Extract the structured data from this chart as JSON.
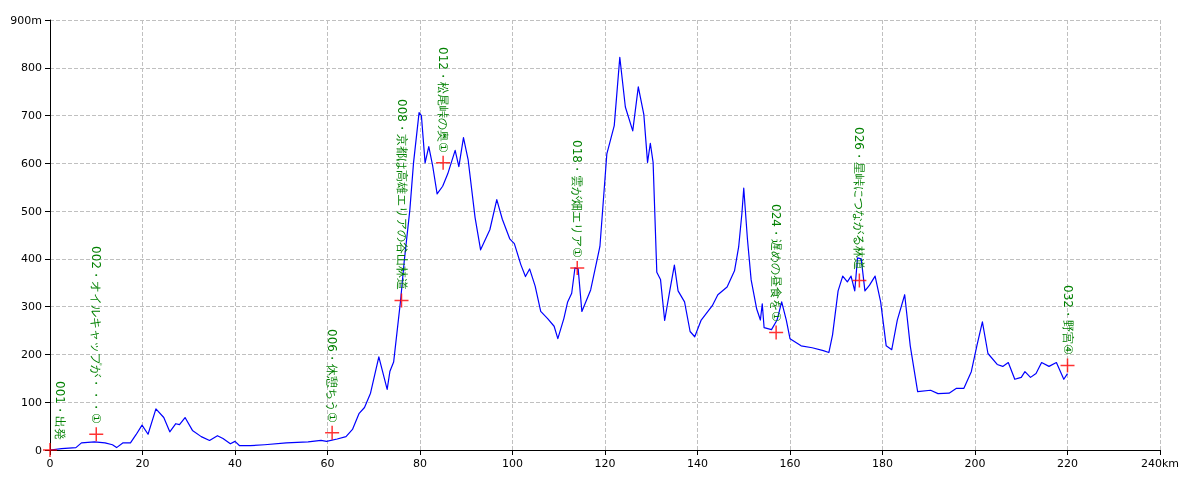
{
  "chart_data": {
    "type": "line",
    "xlim": [
      0,
      240
    ],
    "ylim": [
      0,
      900
    ],
    "xticks": [
      0,
      20,
      40,
      60,
      80,
      100,
      120,
      140,
      160,
      180,
      200,
      220,
      {
        "value": 240,
        "label": "240km"
      }
    ],
    "yticks": [
      0,
      100,
      200,
      300,
      400,
      500,
      600,
      700,
      800,
      {
        "value": 900,
        "label": "900m"
      }
    ],
    "grid": true,
    "series": [
      {
        "type": "line",
        "color": "#0000ff",
        "marker": "none",
        "line_style": "solid",
        "x": [
          0,
          2.5,
          5.6,
          6.8,
          9.6,
          11.9,
          13.5,
          14.4,
          15.8,
          17.4,
          18.6,
          19.9,
          21.2,
          22.9,
          24.6,
          25.9,
          27.2,
          28,
          29.2,
          30.8,
          32.7,
          34.5,
          36.2,
          37.4,
          39,
          40,
          41,
          43.3,
          46.4,
          51.1,
          55.8,
          58.6,
          59.8,
          62.1,
          64,
          65.4,
          66.8,
          68,
          69.3,
          71.1,
          72.9,
          73.5,
          74.3,
          75,
          75.8,
          76.6,
          77.8,
          78.6,
          79.8,
          80.3,
          81.1,
          81.9,
          82.7,
          83.7,
          84.9,
          86,
          87.6,
          88.4,
          89.4,
          90.4,
          91.9,
          93.1,
          95.1,
          96.6,
          97.8,
          99.4,
          100.4,
          101.8,
          102.8,
          103.7,
          104.9,
          106.1,
          107.6,
          109,
          109.8,
          111.1,
          111.9,
          112.8,
          113.5,
          114.2,
          115,
          116.9,
          118.9,
          120.4,
          122,
          123.2,
          124.4,
          126,
          127.2,
          128.4,
          129.2,
          129.8,
          130.4,
          131.2,
          132,
          132.9,
          134,
          135,
          135.8,
          137.2,
          138.4,
          139.4,
          140.8,
          143.2,
          144.4,
          146.4,
          148,
          148.9,
          149.6,
          150,
          150.8,
          151.6,
          152.8,
          153.6,
          154,
          154.4,
          156,
          157.2,
          158.2,
          159.2,
          160,
          162.4,
          164.8,
          167.2,
          168.4,
          169.2,
          170.4,
          171.4,
          172.4,
          173.2,
          174,
          174.6,
          175.4,
          176.2,
          177.2,
          178.4,
          179.6,
          180.8,
          182,
          183.2,
          184.8,
          186,
          187.6,
          190.4,
          192,
          194.4,
          196,
          197.6,
          199.2,
          200.4,
          201.6,
          202.8,
          204.8,
          206,
          207.2,
          208.6,
          210,
          210.8,
          212,
          213.2,
          214.4,
          216,
          217.6,
          219.2,
          220
        ],
        "values": [
          0,
          3,
          5,
          15,
          17,
          15,
          11,
          5,
          15,
          15,
          32,
          52,
          33,
          86,
          68,
          38,
          55,
          53,
          68,
          41,
          28,
          20,
          30,
          24,
          13,
          18,
          9,
          9,
          11,
          15,
          17,
          20,
          18,
          23,
          28,
          43,
          76,
          89,
          119,
          195,
          127,
          165,
          184,
          244,
          313,
          396,
          502,
          601,
          706,
          700,
          601,
          635,
          597,
          536,
          552,
          578,
          627,
          593,
          654,
          608,
          487,
          419,
          461,
          524,
          483,
          442,
          432,
          388,
          363,
          379,
          343,
          290,
          275,
          259,
          233,
          275,
          309,
          328,
          381,
          379,
          290,
          335,
          426,
          620,
          679,
          822,
          718,
          668,
          760,
          702,
          602,
          642,
          602,
          372,
          357,
          271,
          333,
          387,
          333,
          310,
          248,
          237,
          272,
          302,
          325,
          341,
          375,
          425,
          495,
          548,
          441,
          356,
          295,
          272,
          306,
          256,
          252,
          272,
          310,
          272,
          233,
          218,
          214,
          208,
          204,
          241,
          333,
          364,
          352,
          364,
          333,
          402,
          400,
          333,
          345,
          364,
          310,
          218,
          210,
          272,
          325,
          218,
          122,
          125,
          118,
          119,
          129,
          129,
          164,
          218,
          268,
          202,
          179,
          175,
          183,
          148,
          152,
          164,
          152,
          160,
          183,
          175,
          183,
          148,
          160
        ]
      },
      {
        "type": "scatter",
        "color": "#ff0000",
        "marker": "cross",
        "x": [
          0,
          10,
          61,
          76,
          85,
          114,
          157,
          175,
          220
        ],
        "values": [
          0,
          33,
          36,
          313,
          601,
          381,
          246,
          355,
          177
        ]
      }
    ],
    "annotations": [
      {
        "text": "001・出発",
        "x": 0,
        "y": 0
      },
      {
        "text": "002・オイルキャップが・・・①",
        "x": 10,
        "y": 33
      },
      {
        "text": "006・休憩ちう①",
        "x": 61,
        "y": 36
      },
      {
        "text": "008・京都は高雄エリアの谷山林道",
        "x": 76,
        "y": 313
      },
      {
        "text": "012・松尾峠の奥①",
        "x": 85,
        "y": 601
      },
      {
        "text": "018・雲が畑エリア①",
        "x": 114,
        "y": 381
      },
      {
        "text": "024・遅めの昼食を①",
        "x": 157,
        "y": 246
      },
      {
        "text": "026・星峠につながる林道",
        "x": 175,
        "y": 355
      },
      {
        "text": "032・野宮④",
        "x": 220,
        "y": 177
      }
    ]
  }
}
